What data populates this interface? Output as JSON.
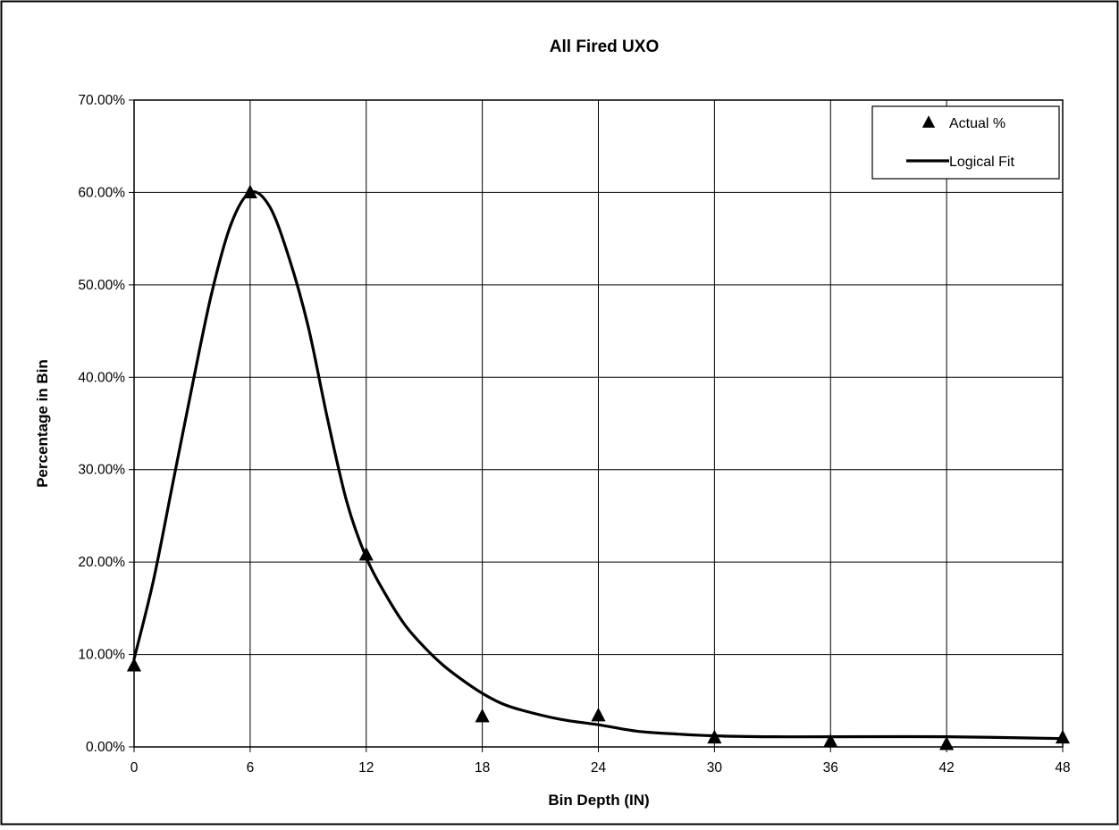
{
  "chart_data": {
    "type": "scatter",
    "title": "All Fired UXO",
    "xlabel": "Bin Depth (IN)",
    "ylabel": "Percentage in Bin",
    "xlim": [
      0,
      48
    ],
    "ylim": [
      0,
      0.7
    ],
    "x_ticks": [
      "0",
      "6",
      "12",
      "18",
      "24",
      "30",
      "36",
      "42",
      "48"
    ],
    "y_ticks": [
      "0.00%",
      "10.00%",
      "20.00%",
      "30.00%",
      "40.00%",
      "50.00%",
      "60.00%",
      "70.00%"
    ],
    "grid": true,
    "legend_position": "top-right",
    "series": [
      {
        "name": "Actual %",
        "kind": "markers",
        "marker": "triangle",
        "color": "#000000",
        "points": [
          {
            "x": 0,
            "y": 0.088
          },
          {
            "x": 6,
            "y": 0.6
          },
          {
            "x": 12,
            "y": 0.208
          },
          {
            "x": 18,
            "y": 0.033
          },
          {
            "x": 24,
            "y": 0.034
          },
          {
            "x": 30,
            "y": 0.01
          },
          {
            "x": 36,
            "y": 0.006
          },
          {
            "x": 42,
            "y": 0.003
          },
          {
            "x": 48,
            "y": 0.01
          }
        ]
      },
      {
        "name": "Logical Fit",
        "kind": "line",
        "color": "#000000",
        "points": [
          {
            "x": 0,
            "y": 0.095
          },
          {
            "x": 1,
            "y": 0.18
          },
          {
            "x": 2,
            "y": 0.285
          },
          {
            "x": 3,
            "y": 0.39
          },
          {
            "x": 4,
            "y": 0.49
          },
          {
            "x": 5,
            "y": 0.565
          },
          {
            "x": 6,
            "y": 0.6
          },
          {
            "x": 7,
            "y": 0.585
          },
          {
            "x": 8,
            "y": 0.53
          },
          {
            "x": 9,
            "y": 0.455
          },
          {
            "x": 10,
            "y": 0.355
          },
          {
            "x": 11,
            "y": 0.265
          },
          {
            "x": 12,
            "y": 0.205
          },
          {
            "x": 13,
            "y": 0.165
          },
          {
            "x": 14,
            "y": 0.132
          },
          {
            "x": 15,
            "y": 0.108
          },
          {
            "x": 16,
            "y": 0.088
          },
          {
            "x": 17,
            "y": 0.072
          },
          {
            "x": 18,
            "y": 0.058
          },
          {
            "x": 19,
            "y": 0.047
          },
          {
            "x": 20,
            "y": 0.04
          },
          {
            "x": 22,
            "y": 0.03
          },
          {
            "x": 24,
            "y": 0.024
          },
          {
            "x": 26,
            "y": 0.017
          },
          {
            "x": 28,
            "y": 0.014
          },
          {
            "x": 30,
            "y": 0.012
          },
          {
            "x": 33,
            "y": 0.011
          },
          {
            "x": 36,
            "y": 0.011
          },
          {
            "x": 42,
            "y": 0.011
          },
          {
            "x": 48,
            "y": 0.009
          }
        ]
      }
    ]
  }
}
